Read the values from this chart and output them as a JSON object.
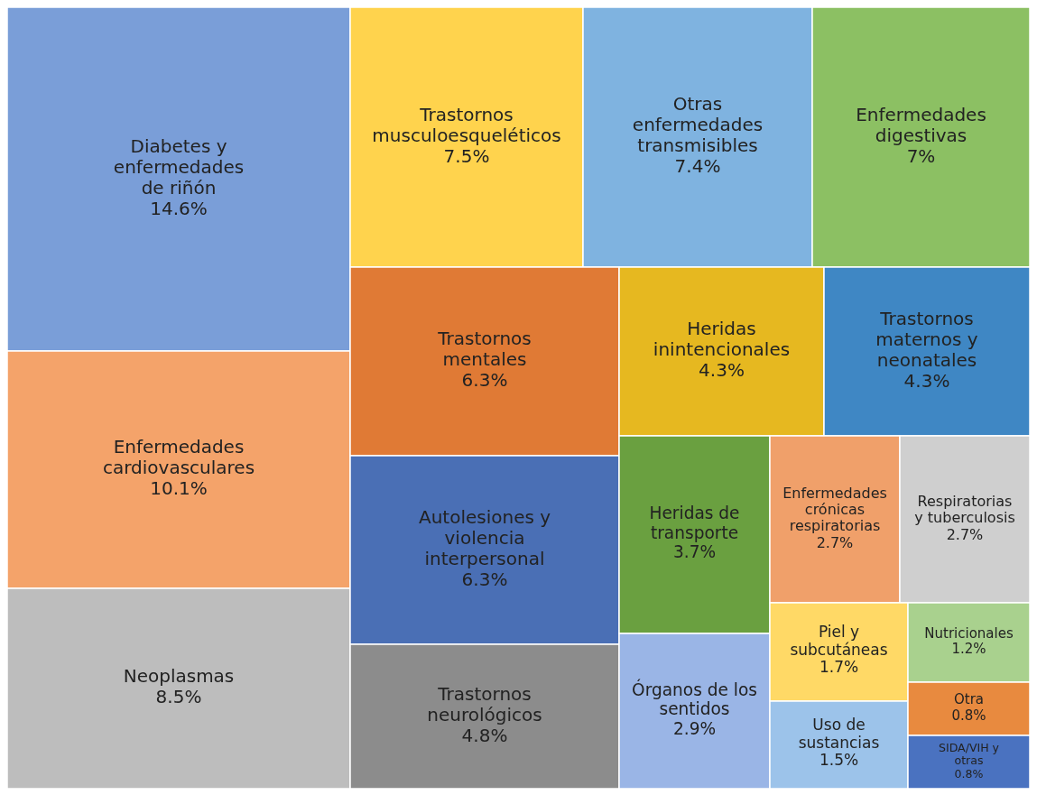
{
  "chart_data": {
    "type": "other",
    "categories": [
      "Diabetes y enfermedades de riñón",
      "Enfermedades cardiovasculares",
      "Neoplasmas",
      "Trastornos musculoesqueléticos",
      "Otras enfermedades transmisibles",
      "Enfermedades digestivas",
      "Trastornos mentales",
      "Autolesiones y violencia interpersonal",
      "Trastornos neurológicos",
      "Heridas inintencionales",
      "Trastornos maternos y neonatales",
      "Heridas de transporte",
      "Órganos de los sentidos",
      "Enfermedades crónicas respiratorias",
      "Respiratorias y tuberculosis",
      "Piel y subcutáneas",
      "Uso de sustancias",
      "Nutricionales",
      "Otra",
      "SIDA/VIH y otras"
    ],
    "values": [
      14.6,
      10.1,
      8.5,
      7.5,
      7.4,
      7,
      6.3,
      6.3,
      4.8,
      4.3,
      4.3,
      3.7,
      2.9,
      2.7,
      2.7,
      1.7,
      1.5,
      1.2,
      0.8,
      0.8
    ],
    "value_labels": [
      "14.6%",
      "10.1%",
      "8.5%",
      "7.5%",
      "7.4%",
      "7%",
      "6.3%",
      "6.3%",
      "4.8%",
      "4.3%",
      "4.3%",
      "3.7%",
      "2.9%",
      "2.7%",
      "2.7%",
      "1.7%",
      "1.5%",
      "1.2%",
      "0.8%",
      "0.8%"
    ],
    "colors": [
      "#7a9ed8",
      "#f4a36a",
      "#bdbdbd",
      "#ffd34d",
      "#7fb3e0",
      "#8cc063",
      "#e07a35",
      "#4a6fb5",
      "#8c8c8c",
      "#e6b820",
      "#3f87c4",
      "#6aa040",
      "#9ab5e6",
      "#f0a06a",
      "#cfcfcf",
      "#ffd966",
      "#9cc3ea",
      "#a9d18e",
      "#e88a3f",
      "#4a72c0"
    ]
  }
}
